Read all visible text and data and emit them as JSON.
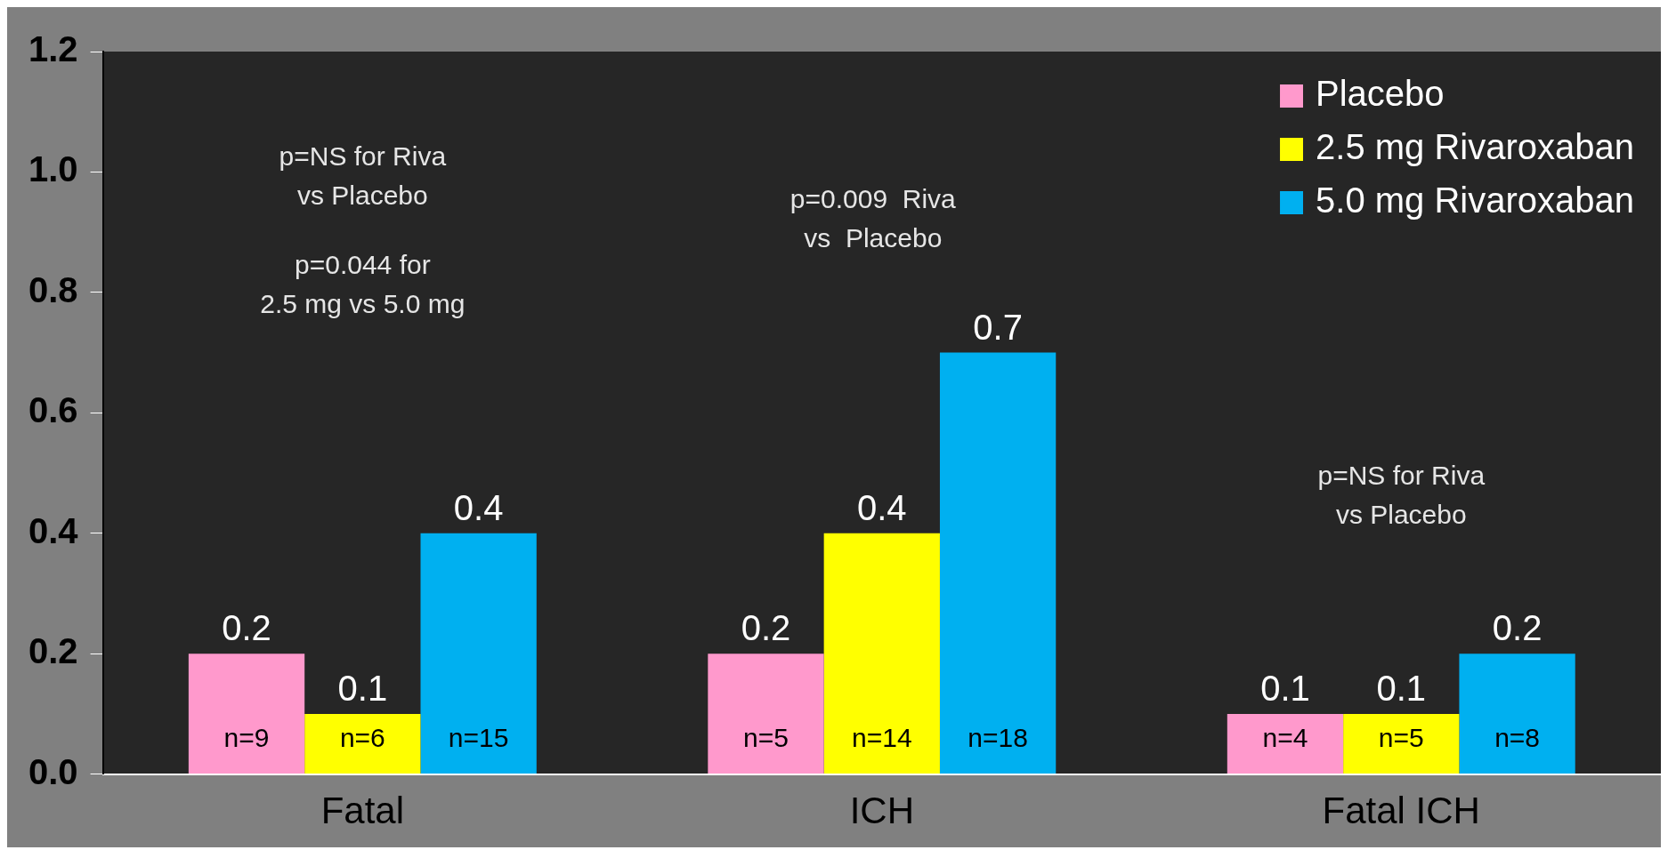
{
  "chart_data": {
    "type": "bar",
    "categories": [
      "Fatal",
      "ICH",
      "Fatal ICH"
    ],
    "series": [
      {
        "name": "Placebo",
        "color": "#ff99cc",
        "values": [
          0.2,
          0.2,
          0.1
        ]
      },
      {
        "name": "2.5 mg Rivaroxaban",
        "color": "#ffff00",
        "values": [
          0.1,
          0.4,
          0.1
        ]
      },
      {
        "name": "5.0 mg Rivaroxaban",
        "color": "#00b0f0",
        "values": [
          0.4,
          0.7,
          0.2
        ]
      }
    ],
    "ylim": [
      0,
      1.2
    ],
    "yticks": [
      {
        "value": 0,
        "label": "0.0"
      },
      {
        "value": 0.2,
        "label": "0.2"
      },
      {
        "value": 0.4,
        "label": "0.4"
      },
      {
        "value": 0.6,
        "label": "0.6"
      },
      {
        "value": 0.8,
        "label": "0.8"
      },
      {
        "value": 1.0,
        "label": "1.0"
      },
      {
        "value": 1.2,
        "label": "1.2"
      }
    ],
    "data_labels": true,
    "legend": "top right",
    "grid": false,
    "annotations": [
      "p=NS for Riva\nvs Placebo",
      "p=0.044 for\n2.5 mg vs 5.0 mg",
      "p=0.009  Riva\nvs  Placebo",
      "p=NS for Riva\nvs Placebo",
      "n=9",
      "n=6",
      "n=15",
      "n=5",
      "n=14",
      "n=18",
      "n=4",
      "n=5",
      "n=8"
    ]
  }
}
